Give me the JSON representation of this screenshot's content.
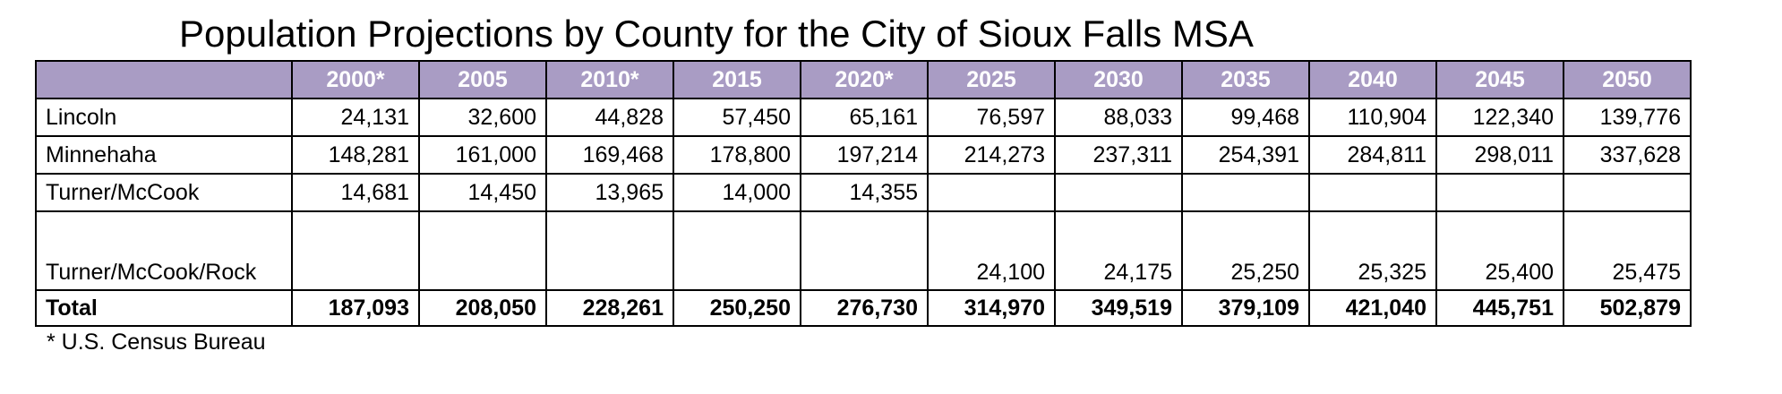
{
  "title": "Population Projections by County for the City of Sioux Falls MSA",
  "table": {
    "header": [
      "",
      "2000*",
      "2005",
      "2010*",
      "2015",
      "2020*",
      "2025",
      "2030",
      "2035",
      "2040",
      "2045",
      "2050"
    ],
    "rows": [
      {
        "label": "Lincoln",
        "values": [
          "24,131",
          "32,600",
          "44,828",
          "57,450",
          "65,161",
          "76,597",
          "88,033",
          "99,468",
          "110,904",
          "122,340",
          "139,776"
        ]
      },
      {
        "label": "Minnehaha",
        "values": [
          "148,281",
          "161,000",
          "169,468",
          "178,800",
          "197,214",
          "214,273",
          "237,311",
          "254,391",
          "284,811",
          "298,011",
          "337,628"
        ]
      },
      {
        "label": "Turner/McCook",
        "values": [
          "14,681",
          "14,450",
          "13,965",
          "14,000",
          "14,355",
          "",
          "",
          "",
          "",
          "",
          ""
        ]
      },
      {
        "label": "Turner/McCook/Rock",
        "values": [
          "",
          "",
          "",
          "",
          "",
          "24,100",
          "24,175",
          "25,250",
          "25,325",
          "25,400",
          "25,475"
        ]
      },
      {
        "label": "Total",
        "values": [
          "187,093",
          "208,050",
          "228,261",
          "250,250",
          "276,730",
          "314,970",
          "349,519",
          "379,109",
          "421,040",
          "445,751",
          "502,879"
        ]
      }
    ]
  },
  "footnote": "* U.S. Census Bureau",
  "colors": {
    "header_background": "#a99cc4",
    "header_text": "#ffffff"
  }
}
